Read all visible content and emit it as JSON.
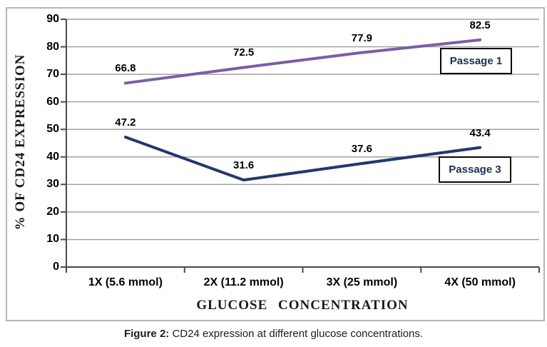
{
  "chart_data": {
    "type": "line",
    "title": "",
    "xlabel": "GLUCOSE CONCENTRATION",
    "ylabel": "% OF CD24 EXPRESSION",
    "categories": [
      "1X (5.6 mmol)",
      "2X (11.2 mmol)",
      "3X (25 mmol)",
      "4X (50 mmol)"
    ],
    "series": [
      {
        "name": "Passage 1",
        "values": [
          66.8,
          72.5,
          77.9,
          82.5
        ],
        "color": "#7a5ea6"
      },
      {
        "name": "Passage 3",
        "values": [
          47.2,
          31.6,
          37.6,
          43.4
        ],
        "color": "#24386b"
      }
    ],
    "ylim": [
      0,
      90
    ],
    "ytick_step": 10,
    "grid": true,
    "legend_position": "inside-right-boxed",
    "data_labels_shown": true
  },
  "caption": {
    "prefix": "Figure 2:",
    "text": " CD24 expression at different glucose concentrations."
  },
  "colors": {
    "gridline": "#a1a1a1",
    "axis": "#4a4a4a",
    "outer_border": "#b6b6b6",
    "legend_text": "#1f2e52",
    "legend_border": "#060606",
    "text": "#000000"
  }
}
